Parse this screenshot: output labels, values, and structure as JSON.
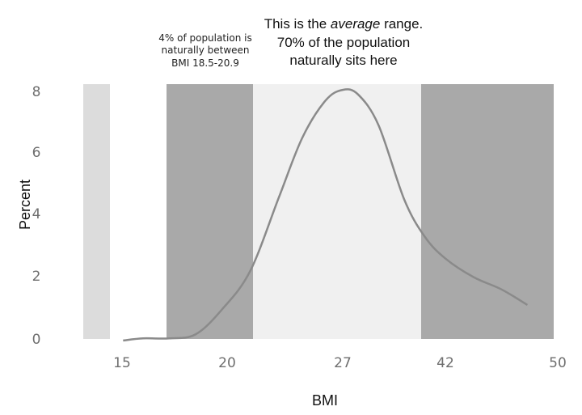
{
  "chart_data": {
    "type": "line",
    "xlabel": "BMI",
    "ylabel": "Percent",
    "y_ticks": [
      "0",
      "2",
      "4",
      "6",
      "8"
    ],
    "x_ticks": [
      "15",
      "20",
      "27",
      "42",
      "50"
    ],
    "ylim": [
      0,
      8
    ],
    "grid": false,
    "legend": "none",
    "bands": [
      {
        "from_tick": 0,
        "to_tick": 0.24,
        "shade": "#dcdcdc"
      },
      {
        "from_tick": 0.45,
        "to_tick": 1.17,
        "shade": "#a9a9a9"
      },
      {
        "from_tick": 1.17,
        "to_tick": 2.6,
        "shade": "#f0f0f0"
      },
      {
        "from_tick": 2.6,
        "to_tick": 3.73,
        "shade": "#a9a9a9"
      }
    ],
    "curve": {
      "color": "#8a8a8a",
      "x_tick_pos": [
        0.01,
        0.2,
        0.45,
        0.7,
        0.95,
        1.2,
        1.45,
        1.65,
        1.85,
        2.0,
        2.15,
        2.35,
        2.6,
        2.8,
        3.0,
        3.25,
        3.5,
        3.73
      ],
      "y": [
        -0.05,
        0.02,
        0.02,
        0.15,
        0.95,
        2.2,
        4.6,
        6.5,
        7.7,
        8.05,
        7.9,
        6.9,
        4.5,
        3.3,
        2.6,
        2.0,
        1.6,
        1.1
      ]
    },
    "annotations": {
      "left": [
        "4% of population is",
        "naturally between",
        "BMI 18.5-20.9"
      ],
      "center_line1_a": "This is the ",
      "center_line1_italic": "average",
      "center_line1_b": " range.",
      "center_line2": "70% of the population",
      "center_line3": "naturally sits here"
    }
  }
}
